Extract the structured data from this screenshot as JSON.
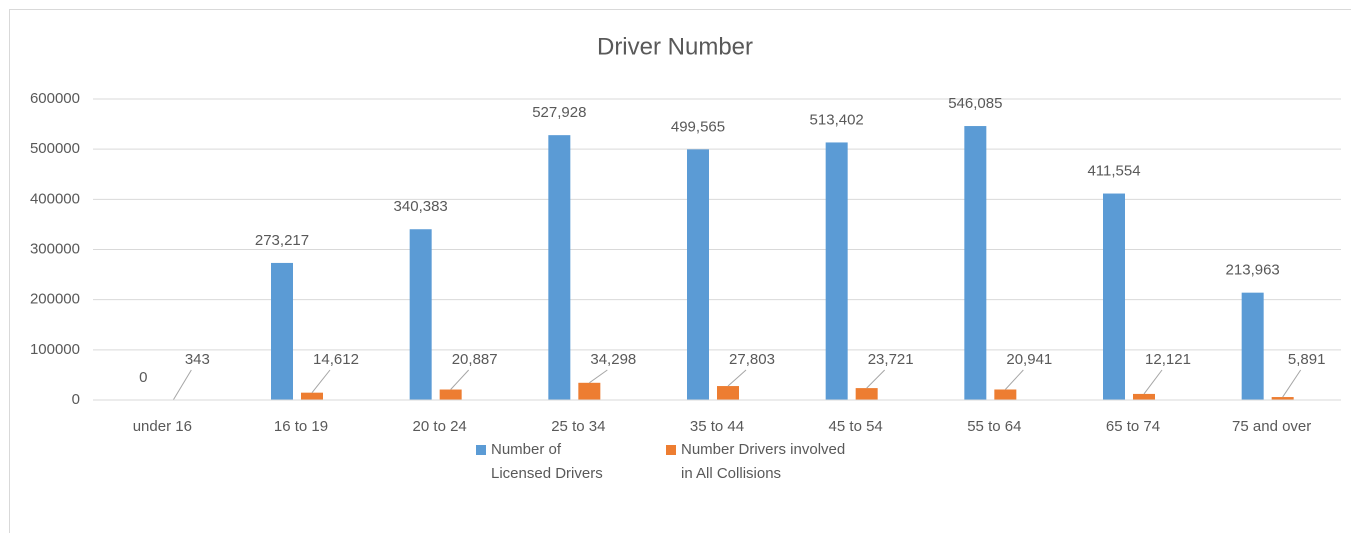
{
  "chart_data": {
    "type": "bar",
    "title": "Driver Number",
    "categories": [
      "under 16",
      "16 to 19",
      "20 to 24",
      "25 to 34",
      "35 to 44",
      "45 to 54",
      "55 to 64",
      "65 to 74",
      "75 and over"
    ],
    "series": [
      {
        "name": "Number of Licensed Drivers",
        "color": "#5b9bd5",
        "values": [
          0,
          273217,
          340383,
          527928,
          499565,
          513402,
          546085,
          411554,
          213963
        ],
        "value_labels": [
          "0",
          "273,217",
          "340,383",
          "527,928",
          "499,565",
          "513,402",
          "546,085",
          "411,554",
          "213,963"
        ]
      },
      {
        "name": "Number Drivers involved in All Collisions",
        "color": "#ed7d31",
        "values": [
          343,
          14612,
          20887,
          34298,
          27803,
          23721,
          20941,
          12121,
          5891
        ],
        "value_labels": [
          "343",
          "14,612",
          "20,887",
          "34,298",
          "27,803",
          "23,721",
          "20,941",
          "12,121",
          "5,891"
        ]
      }
    ],
    "ylim": [
      0,
      600000
    ],
    "yticks": [
      0,
      100000,
      200000,
      300000,
      400000,
      500000,
      600000
    ],
    "grid": true
  }
}
